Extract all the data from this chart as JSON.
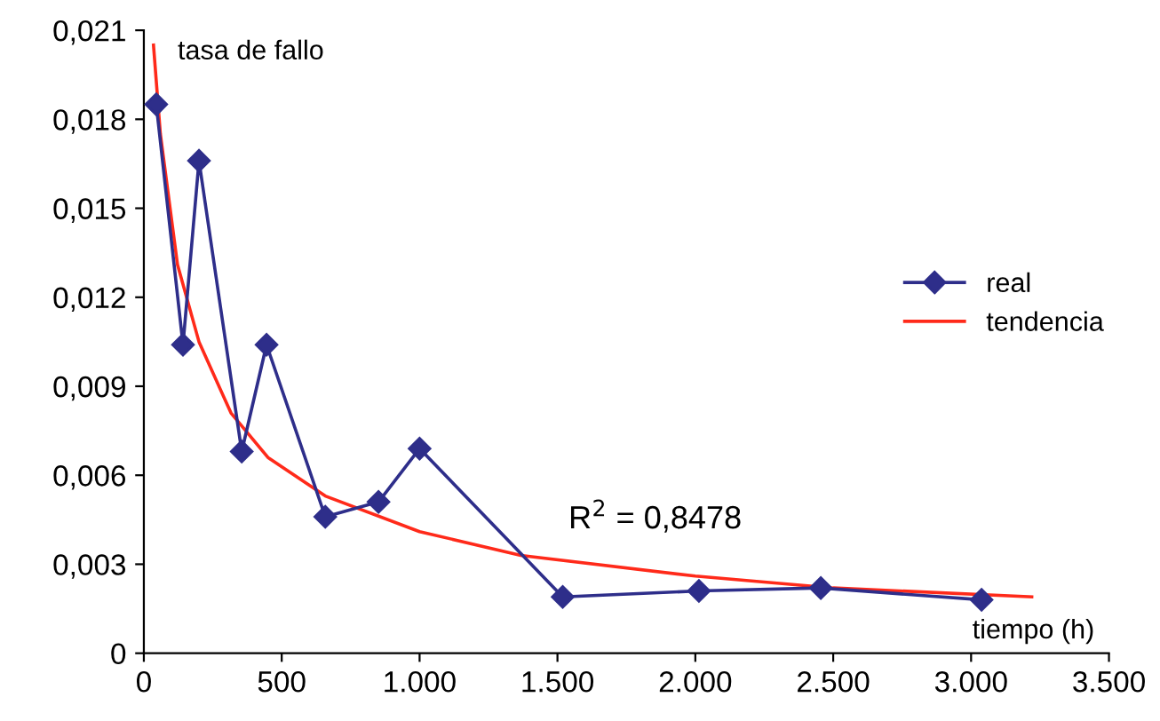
{
  "chart_data": {
    "type": "line",
    "xlabel": "tiempo (h)",
    "ylabel": "tasa de fallo",
    "xlim": [
      0,
      3500
    ],
    "ylim": [
      0,
      0.021
    ],
    "xticks": [
      0,
      500,
      {
        "value": 1000,
        "label": "1.000"
      },
      {
        "value": 1500,
        "label": "1.500"
      },
      {
        "value": 2000,
        "label": "2.000"
      },
      {
        "value": 2500,
        "label": "2.500"
      },
      {
        "value": 3000,
        "label": "3.000"
      },
      {
        "value": 3500,
        "label": "3.500"
      }
    ],
    "yticks": [
      0,
      {
        "value": 0.003,
        "label": "0,003"
      },
      {
        "value": 0.006,
        "label": "0,006"
      },
      {
        "value": 0.009,
        "label": "0,009"
      },
      {
        "value": 0.012,
        "label": "0,012"
      },
      {
        "value": 0.015,
        "label": "0,015"
      },
      {
        "value": 0.018,
        "label": "0,018"
      },
      {
        "value": 0.021,
        "label": "0,021"
      }
    ],
    "series": [
      {
        "name": "real",
        "color": "#2e2e8a",
        "marker": "diamond",
        "x": [
          45,
          142,
          200,
          355,
          445,
          658,
          851,
          1000,
          1519,
          2013,
          2455,
          3038
        ],
        "values": [
          0.0185,
          0.0104,
          0.0166,
          0.0068,
          0.0104,
          0.0046,
          0.0051,
          0.0069,
          0.0019,
          0.0021,
          0.0022,
          0.0018
        ]
      },
      {
        "name": "tendencia",
        "color": "#ff2a1a",
        "marker": "none",
        "x": [
          35,
          60,
          122,
          200,
          316,
          450,
          658,
          1000,
          1367,
          2000,
          2500,
          3220
        ],
        "values": [
          0.0205,
          0.0175,
          0.0131,
          0.0105,
          0.0081,
          0.0066,
          0.0053,
          0.0041,
          0.0033,
          0.0026,
          0.0022,
          0.0019
        ]
      }
    ],
    "annotations": [
      "R$^{2}$ = 0,8478"
    ],
    "legend": "right",
    "grid": false
  }
}
